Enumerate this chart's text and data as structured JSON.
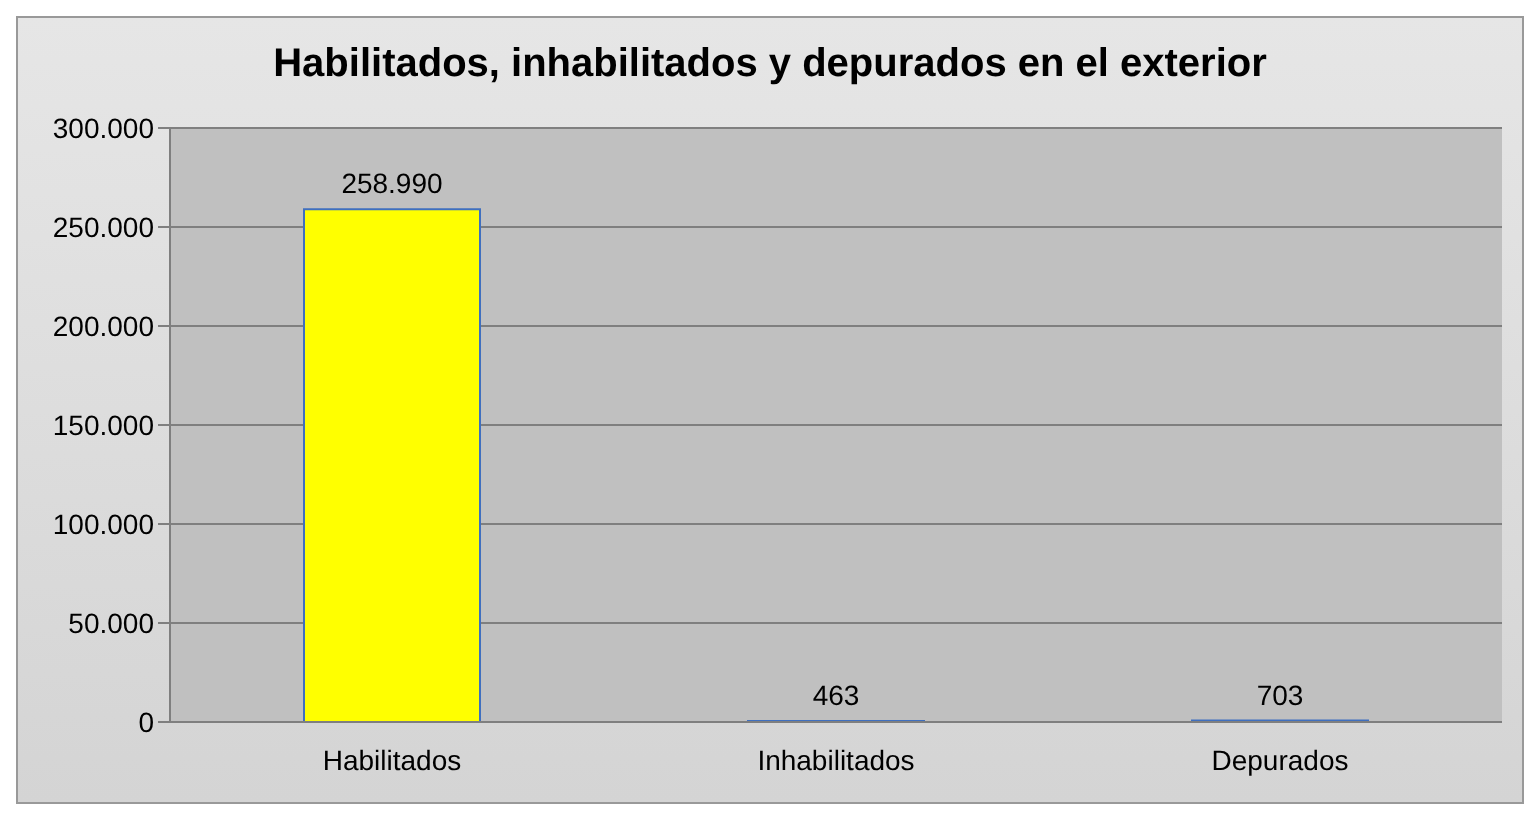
{
  "chart_data": {
    "type": "bar",
    "title": "Habilitados, inhabilitados y depurados en el exterior",
    "categories": [
      "Habilitados",
      "Inhabilitados",
      "Depurados"
    ],
    "values": [
      258990,
      463,
      703
    ],
    "value_labels": [
      "258.990",
      "463",
      "703"
    ],
    "colors": [
      "#ffff00",
      "#4f81bd",
      "#4f81bd"
    ],
    "ylim": [
      0,
      300000
    ],
    "yticks": [
      0,
      {
        "value": 50000,
        "label": "50.000"
      },
      {
        "value": 100000,
        "label": "100.000"
      },
      {
        "value": 150000,
        "label": "150.000"
      },
      {
        "value": 200000,
        "label": "200.000"
      },
      {
        "value": 250000,
        "label": "250.000"
      },
      {
        "value": 300000,
        "label": "300.000"
      }
    ],
    "grid": "y"
  }
}
